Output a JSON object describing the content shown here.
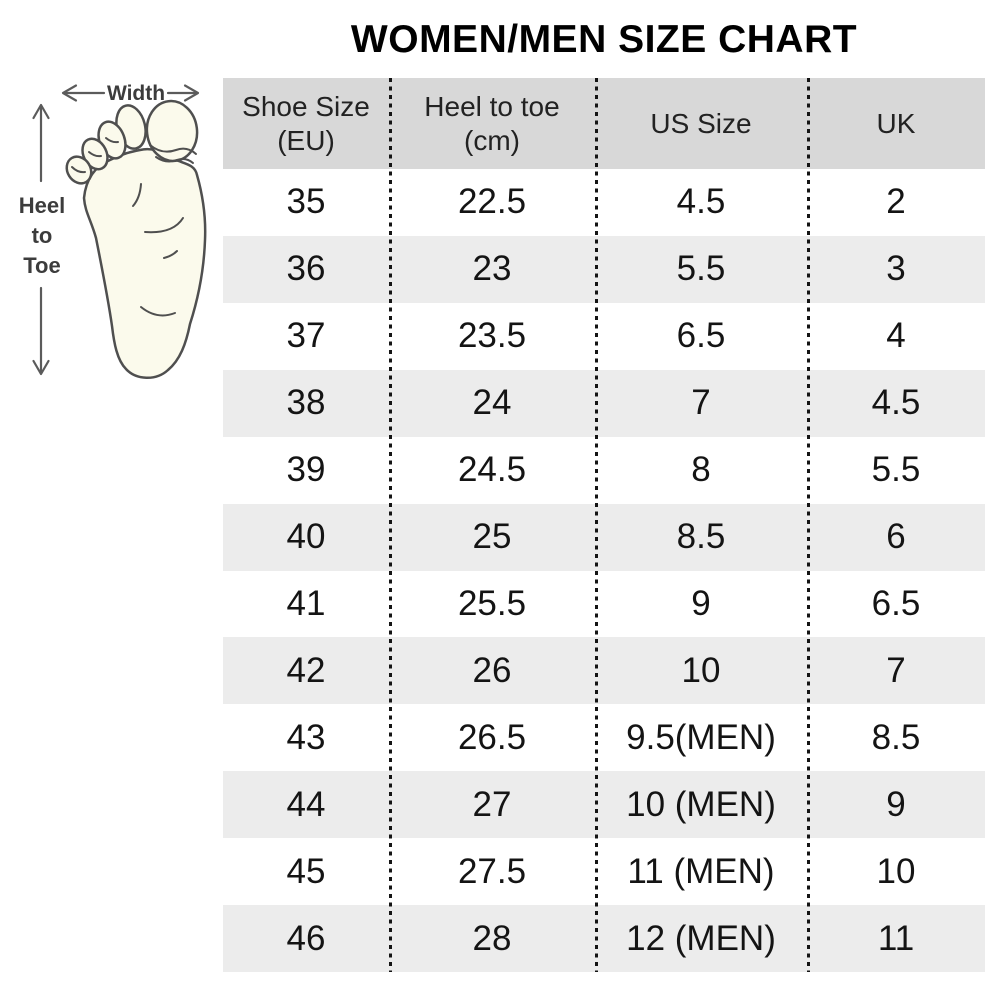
{
  "page": {
    "title": "WOMEN/MEN SIZE CHART"
  },
  "measurement_diagram": {
    "width_label": "Width",
    "heel_to_toe_lines": [
      "Heel",
      "to",
      "Toe"
    ]
  },
  "colors": {
    "page_bg": "#ffffff",
    "header_bg": "#d8d8d8",
    "row_bg": "#ffffff",
    "row_alt_bg": "#ececec",
    "divider": "#141414",
    "title_text": "#000000",
    "header_text": "#222222",
    "cell_text": "#141414",
    "foot_fill": "#fbfaec",
    "foot_outline": "#4f4f4f",
    "annotation_text": "#3c3c3c",
    "arrow": "#5b5b5b"
  },
  "chart_data": {
    "type": "table",
    "title": "WOMEN/MEN SIZE CHART",
    "columns": [
      "Shoe Size (EU)",
      "Heel to toe (cm)",
      "US Size",
      "UK"
    ],
    "header_lines": [
      [
        "Shoe Size",
        "(EU)"
      ],
      [
        "Heel to toe",
        "(cm)"
      ],
      [
        "US Size",
        ""
      ],
      [
        "UK",
        ""
      ]
    ],
    "rows": [
      [
        "35",
        "22.5",
        "4.5",
        "2"
      ],
      [
        "36",
        "23",
        "5.5",
        "3"
      ],
      [
        "37",
        "23.5",
        "6.5",
        "4"
      ],
      [
        "38",
        "24",
        "7",
        "4.5"
      ],
      [
        "39",
        "24.5",
        "8",
        "5.5"
      ],
      [
        "40",
        "25",
        "8.5",
        "6"
      ],
      [
        "41",
        "25.5",
        "9",
        "6.5"
      ],
      [
        "42",
        "26",
        "10",
        "7"
      ],
      [
        "43",
        "26.5",
        "9.5(MEN)",
        "8.5"
      ],
      [
        "44",
        "27",
        "10 (MEN)",
        "9"
      ],
      [
        "45",
        "27.5",
        "11 (MEN)",
        "10"
      ],
      [
        "46",
        "28",
        "12 (MEN)",
        "11"
      ]
    ],
    "layout": {
      "striped_rows": true,
      "column_divider_style": "dashed-vertical",
      "header_background": "#d8d8d8"
    }
  }
}
